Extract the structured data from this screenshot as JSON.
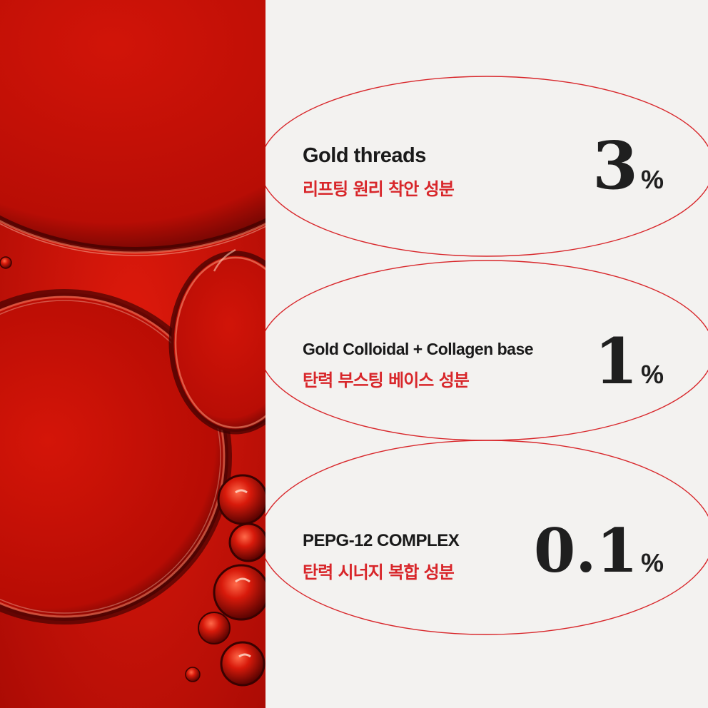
{
  "colors": {
    "accent_red": "#d8262a",
    "text_dark": "#1a1a1a",
    "background": "#f3f2f0",
    "photo_red": "#c41208"
  },
  "items": [
    {
      "title": "Gold threads",
      "subtitle": "리프팅 원리 착안 성분",
      "value": "3",
      "unit": "%"
    },
    {
      "title": "Gold Colloidal + Collagen base",
      "subtitle": "탄력 부스팅 베이스 성분",
      "value": "1",
      "unit": "%"
    },
    {
      "title": "PEPG-12 COMPLEX",
      "subtitle": "탄력 시너지 복합 성분",
      "value": "0.1",
      "unit": "%"
    }
  ]
}
